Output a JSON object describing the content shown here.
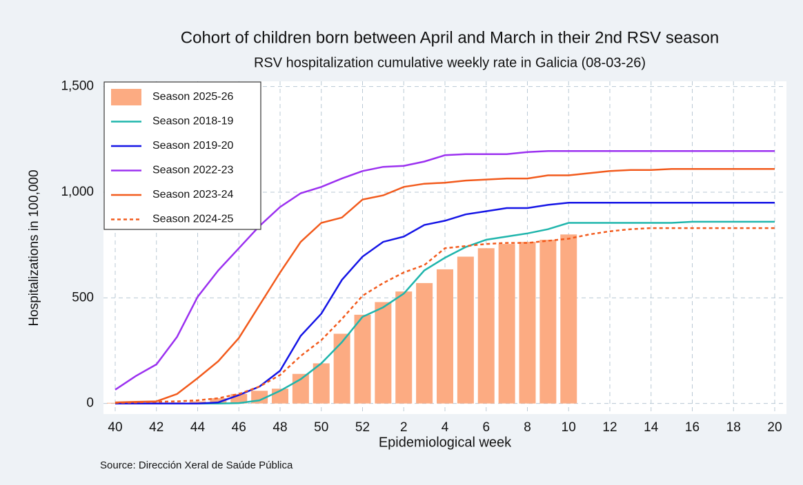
{
  "chart_data": {
    "type": "bar-line",
    "title": "Cohort of children born between April and March in their 2nd RSV season",
    "subtitle": "RSV hospitalization cumulative weekly rate in Galicia (08-03-26)",
    "x_label": "Epidemiological week",
    "y_label": "Hospitalizations in 100,000",
    "source": "Source: Dirección Xeral de Saúde Pública",
    "categories": [
      40,
      null,
      42,
      null,
      44,
      null,
      46,
      null,
      48,
      null,
      50,
      null,
      52,
      null,
      2,
      null,
      4,
      null,
      6,
      null,
      8,
      null,
      10,
      null,
      12,
      null,
      14,
      null,
      16,
      null,
      18,
      null,
      20
    ],
    "ylim": [
      -50,
      1525
    ],
    "yticks": [
      0,
      500,
      {
        "value": 1000,
        "label": "1,000"
      },
      {
        "value": 1500,
        "label": "1,500"
      }
    ],
    "grid": true,
    "legend": "upper left",
    "series": [
      {
        "name": "Season 2025-26",
        "kind": "bar",
        "color": "#fcab82",
        "values": [
          3,
          3,
          5,
          5,
          10,
          25,
          45,
          60,
          70,
          140,
          190,
          330,
          420,
          480,
          530,
          570,
          635,
          695,
          735,
          755,
          765,
          775,
          800,
          null,
          null,
          null,
          null,
          null,
          null,
          null,
          null,
          null,
          null
        ]
      },
      {
        "name": "Season 2018-19",
        "kind": "line",
        "color": "#1fb5ac",
        "values": [
          0,
          0,
          0,
          0,
          0,
          0,
          2,
          15,
          60,
          115,
          190,
          290,
          410,
          455,
          520,
          630,
          690,
          740,
          775,
          790,
          805,
          825,
          855,
          855,
          855,
          855,
          855,
          855,
          860,
          860,
          860,
          860,
          860
        ]
      },
      {
        "name": "Season 2019-20",
        "kind": "line",
        "color": "#1414e6",
        "values": [
          0,
          0,
          0,
          0,
          0,
          5,
          40,
          80,
          155,
          320,
          425,
          585,
          695,
          765,
          790,
          845,
          865,
          895,
          910,
          925,
          925,
          940,
          950,
          950,
          950,
          950,
          950,
          950,
          950,
          950,
          950,
          950,
          950
        ]
      },
      {
        "name": "Season 2022-23",
        "kind": "line",
        "color": "#9b30f0",
        "values": [
          65,
          130,
          185,
          315,
          505,
          630,
          735,
          840,
          930,
          995,
          1025,
          1065,
          1100,
          1120,
          1125,
          1145,
          1175,
          1180,
          1180,
          1180,
          1190,
          1195,
          1195,
          1195,
          1195,
          1195,
          1195,
          1195,
          1195,
          1195,
          1195,
          1195,
          1195
        ]
      },
      {
        "name": "Season 2023-24",
        "kind": "line",
        "color": "#f25a1c",
        "values": [
          5,
          8,
          10,
          45,
          120,
          200,
          310,
          465,
          620,
          765,
          855,
          880,
          965,
          985,
          1025,
          1040,
          1045,
          1055,
          1060,
          1065,
          1065,
          1080,
          1080,
          1090,
          1100,
          1105,
          1105,
          1110,
          1110,
          1110,
          1110,
          1110,
          1110
        ]
      },
      {
        "name": "Season 2024-25",
        "kind": "line",
        "dashed": true,
        "color": "#f25a1c",
        "values": [
          3,
          5,
          8,
          10,
          15,
          25,
          45,
          80,
          135,
          225,
          300,
          400,
          510,
          570,
          620,
          655,
          735,
          745,
          755,
          760,
          760,
          770,
          780,
          800,
          815,
          825,
          830,
          830,
          830,
          830,
          830,
          830,
          830
        ]
      }
    ]
  }
}
